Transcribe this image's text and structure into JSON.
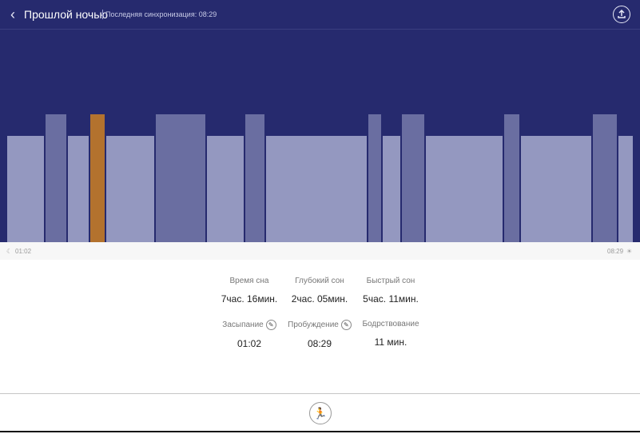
{
  "header": {
    "back_icon": "chevron-left-icon",
    "title": "Прошлой ночью",
    "sync_text": "Последняя синхронизация: 08:29",
    "share_icon": "share-upload-icon"
  },
  "colors": {
    "background": "#262a6e",
    "light_sleep": "#9498c0",
    "deep_sleep": "#6a6ea1",
    "awake": "#b3722e"
  },
  "chart_data": {
    "type": "bar",
    "title": "",
    "start_label": "01:02",
    "end_label": "08:29",
    "levels": {
      "light": 0.5,
      "deep": 0.6
    },
    "segments": [
      {
        "stage": "light"
      },
      {
        "stage": "deep"
      },
      {
        "stage": "light"
      },
      {
        "stage": "awake"
      },
      {
        "stage": "light"
      },
      {
        "stage": "deep"
      },
      {
        "stage": "light"
      },
      {
        "stage": "deep"
      },
      {
        "stage": "light"
      },
      {
        "stage": "deep"
      },
      {
        "stage": "light"
      },
      {
        "stage": "deep"
      },
      {
        "stage": "light"
      },
      {
        "stage": "deep"
      },
      {
        "stage": "light"
      },
      {
        "stage": "deep"
      },
      {
        "stage": "light"
      }
    ]
  },
  "timeline": {
    "start_icon": "moon-icon",
    "start": "01:02",
    "end": "08:29",
    "end_icon": "sun-icon"
  },
  "stats": {
    "sleep_time": {
      "label": "Время сна",
      "value": "7час. 16мин."
    },
    "deep_sleep": {
      "label": "Глубокий сон",
      "value": "2час. 05мин."
    },
    "fast_sleep": {
      "label": "Быстрый сон",
      "value": "5час. 11мин."
    },
    "fall_asleep": {
      "label": "Засыпание",
      "value": "01:02",
      "edit_icon": "pencil-icon"
    },
    "wake_up": {
      "label": "Пробуждение",
      "value": "08:29",
      "edit_icon": "pencil-icon"
    },
    "awake_time": {
      "label": "Бодрствование",
      "value": "11 мин."
    }
  },
  "footer": {
    "action_icon": "running-person-icon"
  }
}
